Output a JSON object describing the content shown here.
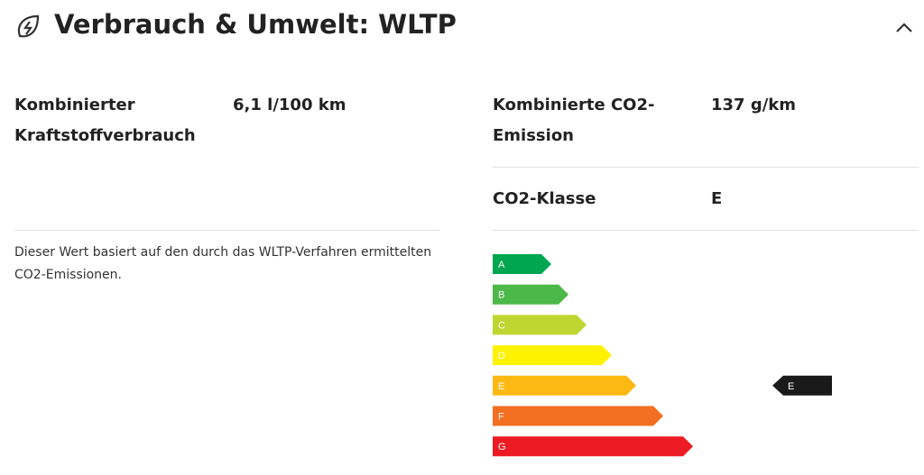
{
  "header": {
    "title": "Verbrauch & Umwelt: WLTP"
  },
  "left": {
    "label": "Kombinierter Kraftstoffverbrauch",
    "value": "6,1 l/100 km",
    "note": "Dieser Wert basiert auf den durch das WLTP-Verfahren ermittelten CO2-Emissionen."
  },
  "right": {
    "rows": [
      {
        "label": "Kombinierte CO2-Emission",
        "value": "137 g/km"
      },
      {
        "label": "CO2-Klasse",
        "value": "E"
      }
    ]
  },
  "energy_label": {
    "classes": [
      "A",
      "B",
      "C",
      "D",
      "E",
      "F",
      "G"
    ],
    "colors": [
      "#00a650",
      "#4cb848",
      "#bed630",
      "#fff200",
      "#fdb913",
      "#f36f21",
      "#ed1c24"
    ],
    "current": "E"
  }
}
